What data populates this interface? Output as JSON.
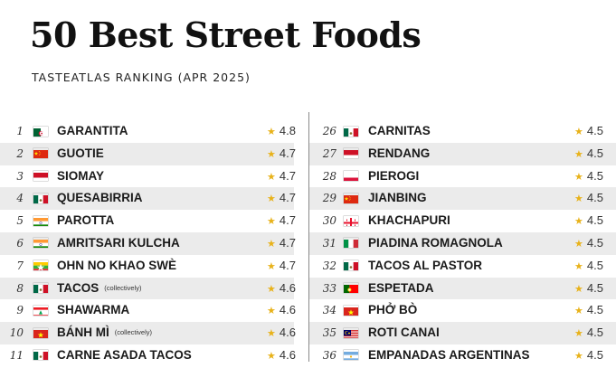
{
  "header": {
    "title": "50 Best Street Foods",
    "subtitle": "TASTEATLAS RANKING (APR 2025)"
  },
  "star_icon": "star-icon",
  "star_color": "#e8b21a",
  "left_column": [
    {
      "rank": "1",
      "flag": "algeria",
      "name": "GARANTITA",
      "note": "",
      "rating": "4.8"
    },
    {
      "rank": "2",
      "flag": "china",
      "name": "GUOTIE",
      "note": "",
      "rating": "4.7"
    },
    {
      "rank": "3",
      "flag": "indonesia",
      "name": "SIOMAY",
      "note": "",
      "rating": "4.7"
    },
    {
      "rank": "4",
      "flag": "mexico",
      "name": "QUESABIRRIA",
      "note": "",
      "rating": "4.7"
    },
    {
      "rank": "5",
      "flag": "india",
      "name": "PAROTTA",
      "note": "",
      "rating": "4.7"
    },
    {
      "rank": "6",
      "flag": "india",
      "name": "AMRITSARI KULCHA",
      "note": "",
      "rating": "4.7"
    },
    {
      "rank": "7",
      "flag": "myanmar",
      "name": "OHN NO KHAO SWÈ",
      "note": "",
      "rating": "4.7"
    },
    {
      "rank": "8",
      "flag": "mexico",
      "name": "TACOS",
      "note": "(collectively)",
      "rating": "4.6"
    },
    {
      "rank": "9",
      "flag": "lebanon",
      "name": "SHAWARMA",
      "note": "",
      "rating": "4.6"
    },
    {
      "rank": "10",
      "flag": "vietnam",
      "name": "BÁNH MÌ",
      "note": "(collectively)",
      "rating": "4.6"
    },
    {
      "rank": "11",
      "flag": "mexico",
      "name": "CARNE ASADA TACOS",
      "note": "",
      "rating": "4.6"
    }
  ],
  "right_column": [
    {
      "rank": "26",
      "flag": "mexico",
      "name": "CARNITAS",
      "note": "",
      "rating": "4.5"
    },
    {
      "rank": "27",
      "flag": "indonesia",
      "name": "RENDANG",
      "note": "",
      "rating": "4.5"
    },
    {
      "rank": "28",
      "flag": "poland",
      "name": "PIEROGI",
      "note": "",
      "rating": "4.5"
    },
    {
      "rank": "29",
      "flag": "china",
      "name": "JIANBING",
      "note": "",
      "rating": "4.5"
    },
    {
      "rank": "30",
      "flag": "georgia",
      "name": "KHACHAPURI",
      "note": "",
      "rating": "4.5"
    },
    {
      "rank": "31",
      "flag": "italy",
      "name": "PIADINA ROMAGNOLA",
      "note": "",
      "rating": "4.5"
    },
    {
      "rank": "32",
      "flag": "mexico",
      "name": "TACOS AL PASTOR",
      "note": "",
      "rating": "4.5"
    },
    {
      "rank": "33",
      "flag": "portugal",
      "name": "ESPETADA",
      "note": "",
      "rating": "4.5"
    },
    {
      "rank": "34",
      "flag": "vietnam",
      "name": "PHỞ BÒ",
      "note": "",
      "rating": "4.5"
    },
    {
      "rank": "35",
      "flag": "malaysia",
      "name": "ROTI CANAI",
      "note": "",
      "rating": "4.5"
    },
    {
      "rank": "36",
      "flag": "argentina",
      "name": "EMPANADAS ARGENTINAS",
      "note": "",
      "rating": "4.5"
    }
  ]
}
